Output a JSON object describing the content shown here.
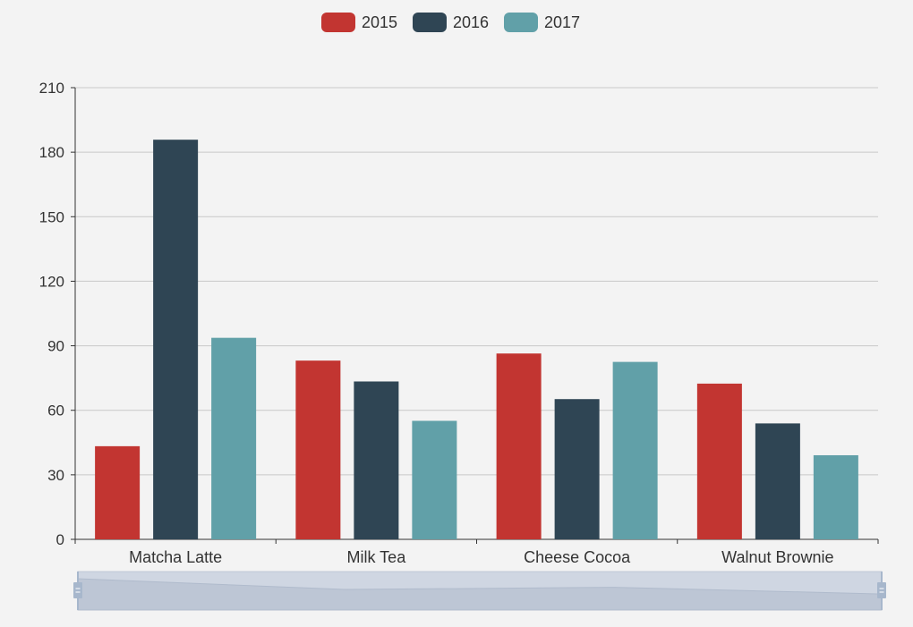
{
  "chart_data": {
    "type": "bar",
    "categories": [
      "Matcha Latte",
      "Milk Tea",
      "Cheese Cocoa",
      "Walnut Brownie"
    ],
    "series": [
      {
        "name": "2015",
        "color": "#c23531",
        "values": [
          43.3,
          83.1,
          86.4,
          72.4
        ]
      },
      {
        "name": "2016",
        "color": "#2f4554",
        "values": [
          185.8,
          73.4,
          65.2,
          53.9
        ]
      },
      {
        "name": "2017",
        "color": "#61a0a8",
        "values": [
          93.7,
          55.1,
          82.5,
          39.1
        ]
      }
    ],
    "ylim": [
      0,
      210
    ],
    "yticks": [
      0,
      30,
      60,
      90,
      120,
      150,
      180,
      210
    ],
    "grid": true,
    "legend": "top-center",
    "datazoom": {
      "start": 0,
      "end": 100
    }
  }
}
